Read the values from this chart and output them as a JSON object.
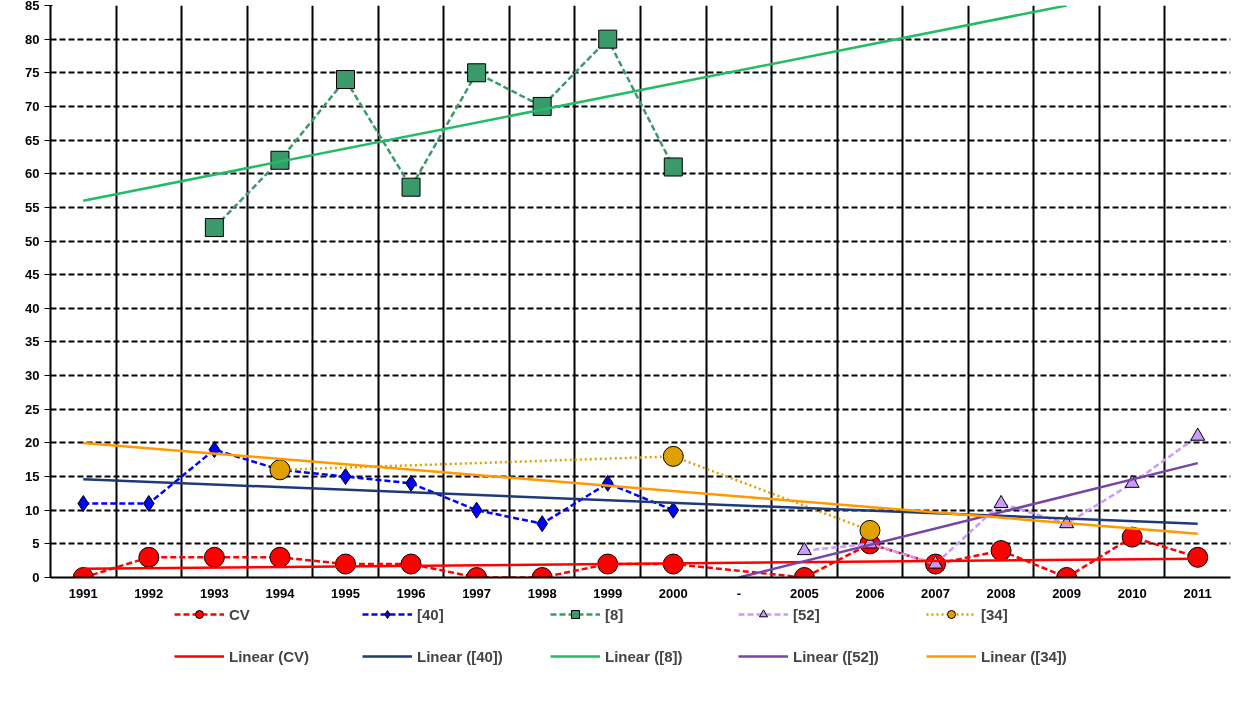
{
  "chart_data": {
    "type": "line",
    "categories": [
      "1991",
      "1992",
      "1993",
      "1994",
      "1995",
      "1996",
      "1997",
      "1998",
      "1999",
      "2000",
      "-",
      "2005",
      "2006",
      "2007",
      "2008",
      "2009",
      "2010",
      "2011"
    ],
    "ylim": [
      0,
      85
    ],
    "yticks": [
      0,
      5,
      10,
      15,
      20,
      25,
      30,
      35,
      40,
      45,
      50,
      55,
      60,
      65,
      70,
      75,
      80,
      85
    ],
    "grid": true,
    "legend": "bottom",
    "series": [
      {
        "name": "CV",
        "color": "#ff0000",
        "marker": "circle",
        "line_style": "dashed",
        "values": [
          0,
          3,
          3,
          3,
          2,
          2,
          0,
          0,
          2,
          2,
          null,
          0,
          5,
          2,
          4,
          0,
          6,
          3
        ]
      },
      {
        "name": "[40]",
        "color": "#0000ff",
        "marker": "diamond",
        "line_style": "dashed",
        "values": [
          11,
          11,
          19,
          16,
          15,
          14,
          10,
          8,
          14,
          10,
          null,
          null,
          null,
          null,
          null,
          null,
          null,
          null
        ]
      },
      {
        "name": "[8]",
        "color": "#3a9a6a",
        "marker": "square",
        "line_style": "dashed",
        "values": [
          null,
          null,
          52,
          62,
          74,
          58,
          75,
          70,
          80,
          61,
          null,
          null,
          null,
          null,
          null,
          null,
          null,
          null
        ]
      },
      {
        "name": "[52]",
        "color": "#cc99ff",
        "marker": "triangle",
        "line_style": "dashed",
        "values": [
          null,
          null,
          null,
          null,
          null,
          null,
          null,
          null,
          null,
          null,
          null,
          4,
          5,
          2,
          11,
          8,
          14,
          21
        ]
      },
      {
        "name": "[34]",
        "color": "#e0a000",
        "marker": "circle",
        "line_style": "dotted",
        "values": [
          null,
          null,
          null,
          16,
          null,
          null,
          null,
          null,
          null,
          18,
          null,
          null,
          7,
          null,
          null,
          null,
          null,
          null
        ]
      },
      {
        "name": "Linear (CV)",
        "color": "#ff0000",
        "marker": "none",
        "line_style": "solid",
        "values": [
          1.3,
          null,
          null,
          null,
          null,
          null,
          null,
          null,
          null,
          null,
          null,
          null,
          null,
          null,
          null,
          null,
          null,
          2.8
        ]
      },
      {
        "name": "Linear ([40])",
        "color": "#1f3a7a",
        "marker": "none",
        "line_style": "solid",
        "values": [
          14.6,
          null,
          null,
          null,
          null,
          null,
          null,
          null,
          null,
          null,
          null,
          null,
          null,
          null,
          null,
          null,
          null,
          8
        ]
      },
      {
        "name": "Linear ([8])",
        "color": "#22bb66",
        "marker": "none",
        "line_style": "solid",
        "values": [
          56,
          null,
          null,
          null,
          null,
          null,
          null,
          null,
          null,
          null,
          null,
          null,
          null,
          null,
          null,
          85,
          null,
          null
        ]
      },
      {
        "name": "Linear ([52])",
        "color": "#7744aa",
        "marker": "none",
        "line_style": "solid",
        "values": [
          null,
          null,
          null,
          null,
          null,
          null,
          null,
          null,
          null,
          null,
          0,
          null,
          null,
          null,
          null,
          null,
          null,
          17
        ]
      },
      {
        "name": "Linear ([34])",
        "color": "#ff9900",
        "marker": "none",
        "line_style": "solid",
        "values": [
          20,
          null,
          null,
          null,
          null,
          null,
          null,
          null,
          null,
          null,
          null,
          null,
          null,
          null,
          null,
          null,
          null,
          6.5
        ]
      }
    ]
  }
}
